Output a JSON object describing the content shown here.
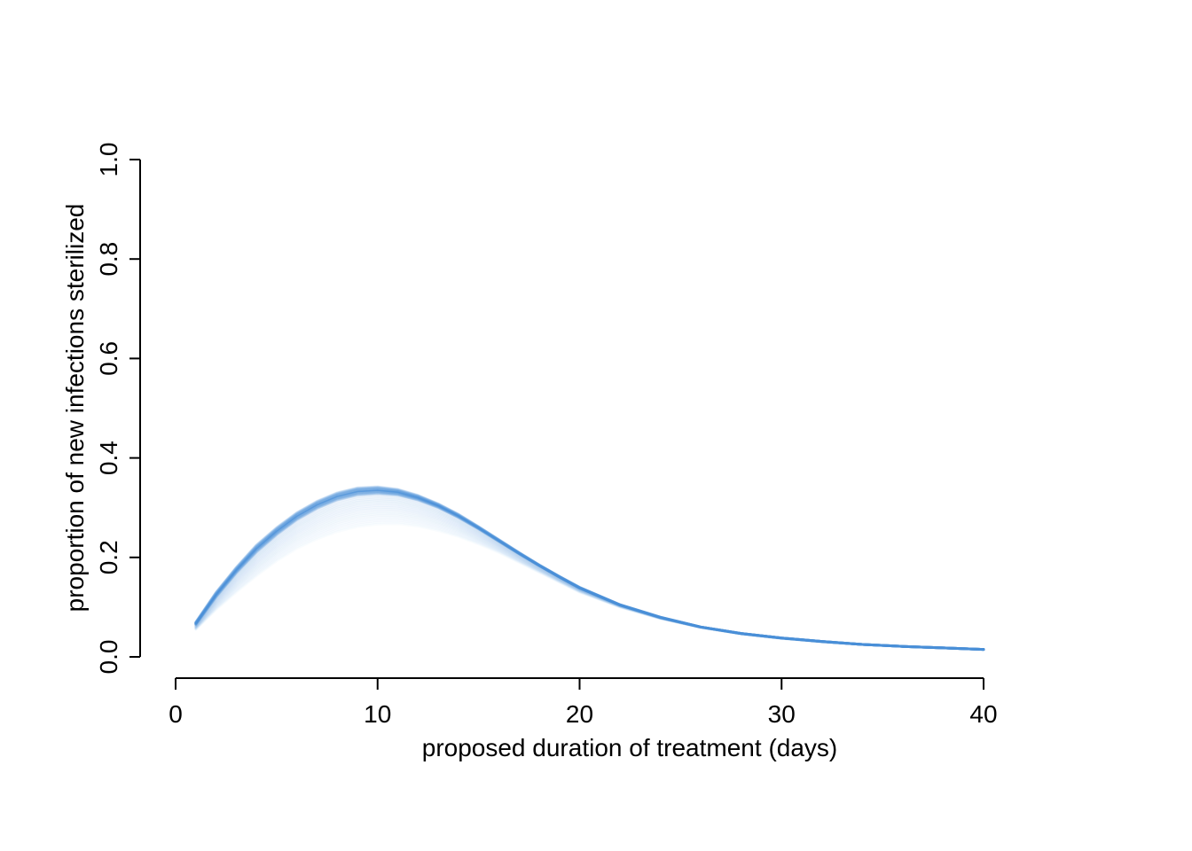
{
  "chart_data": {
    "type": "area",
    "title": "",
    "xlabel": "proposed duration of treatment (days)",
    "ylabel": "proportion of new infections sterilized",
    "xlim": [
      0,
      40
    ],
    "ylim": [
      0,
      1
    ],
    "x_ticks": [
      "0",
      "10",
      "20",
      "30",
      "40"
    ],
    "y_ticks": [
      "0.0",
      "0.2",
      "0.4",
      "0.6",
      "0.8",
      "1.0"
    ],
    "grid": false,
    "legend": "none",
    "color": "#4a90d9",
    "series": [
      {
        "x": [
          1,
          2,
          3,
          4,
          5,
          6,
          7,
          8,
          9,
          10,
          11,
          12,
          13,
          14,
          15,
          16,
          17,
          18,
          19,
          20,
          22,
          24,
          26,
          28,
          30,
          32,
          34,
          36,
          38,
          40
        ],
        "upper": [
          0.07,
          0.13,
          0.18,
          0.225,
          0.26,
          0.29,
          0.313,
          0.33,
          0.34,
          0.342,
          0.337,
          0.325,
          0.308,
          0.287,
          0.262,
          0.236,
          0.21,
          0.185,
          0.162,
          0.14,
          0.105,
          0.08,
          0.06,
          0.047,
          0.038,
          0.031,
          0.025,
          0.021,
          0.018,
          0.015
        ],
        "median": [
          0.065,
          0.12,
          0.168,
          0.21,
          0.245,
          0.275,
          0.298,
          0.315,
          0.325,
          0.328,
          0.325,
          0.315,
          0.3,
          0.28,
          0.257,
          0.232,
          0.207,
          0.183,
          0.16,
          0.138,
          0.104,
          0.079,
          0.06,
          0.047,
          0.038,
          0.031,
          0.025,
          0.021,
          0.018,
          0.015
        ],
        "lower": [
          0.055,
          0.095,
          0.13,
          0.163,
          0.193,
          0.218,
          0.237,
          0.252,
          0.262,
          0.267,
          0.268,
          0.263,
          0.254,
          0.242,
          0.227,
          0.21,
          0.19,
          0.17,
          0.15,
          0.13,
          0.1,
          0.077,
          0.059,
          0.046,
          0.037,
          0.03,
          0.025,
          0.021,
          0.018,
          0.015
        ]
      }
    ]
  }
}
